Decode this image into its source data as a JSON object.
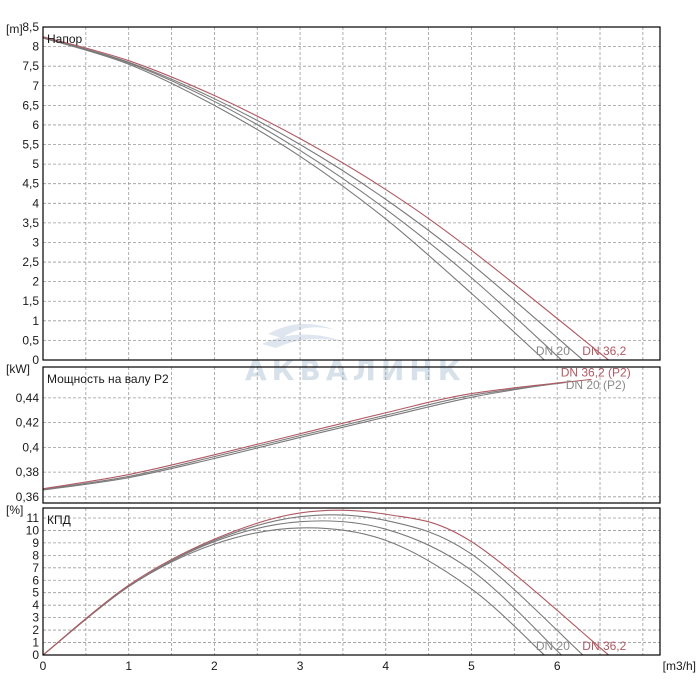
{
  "watermark": {
    "text": "АКВАЛИНК"
  },
  "colors": {
    "grid": "#9a9a9a",
    "frame": "#000000",
    "curve_gray": "#7a7a7a",
    "curve_red": "#b05a64",
    "label_gray": "#8a8a8a",
    "watermark": "#b8c9da"
  },
  "chart_data": [
    {
      "type": "line",
      "title": "Напор",
      "ylabel": "[m]",
      "xlim": [
        0,
        7.2
      ],
      "ylim": [
        0,
        8.5
      ],
      "yticks": [
        0,
        0.5,
        1,
        1.5,
        2,
        2.5,
        3,
        3.5,
        4,
        4.5,
        5,
        5.5,
        6,
        6.5,
        7,
        7.5,
        8,
        8.5
      ],
      "ytick_labels": [
        "0",
        "0,5",
        "1",
        "1,5",
        "2",
        "2,5",
        "3",
        "3,5",
        "4",
        "4,5",
        "5",
        "5,5",
        "6",
        "6,5",
        "7",
        "7,5",
        "8",
        "8,5"
      ],
      "grid": true,
      "series": [
        {
          "color": "gray",
          "x": [
            0,
            1,
            2,
            3,
            4,
            5,
            5.85
          ],
          "y": [
            8.22,
            7.55,
            6.5,
            5.2,
            3.6,
            1.7,
            0
          ]
        },
        {
          "color": "gray",
          "x": [
            0,
            1,
            2,
            3,
            4,
            5,
            6.05
          ],
          "y": [
            8.23,
            7.58,
            6.6,
            5.35,
            3.85,
            2.1,
            0
          ]
        },
        {
          "color": "gray",
          "x": [
            0,
            1,
            2,
            3,
            4,
            5,
            6.3
          ],
          "y": [
            8.24,
            7.6,
            6.67,
            5.5,
            4.1,
            2.45,
            0
          ]
        },
        {
          "color": "red",
          "x": [
            0,
            1,
            2,
            3,
            4,
            5,
            6.6
          ],
          "y": [
            8.25,
            7.64,
            6.75,
            5.65,
            4.35,
            2.8,
            0
          ]
        }
      ],
      "labels": [
        {
          "text": "DN 20",
          "x": 5.95,
          "y": 0.08,
          "color": "gray"
        },
        {
          "text": "DN 36,2",
          "x": 6.55,
          "y": 0.08,
          "color": "red"
        }
      ]
    },
    {
      "type": "line",
      "title": "Мощность на валу P2",
      "ylabel": "[kW]",
      "xlim": [
        0,
        7.2
      ],
      "ylim": [
        0.355,
        0.465
      ],
      "yticks": [
        0.36,
        0.38,
        0.4,
        0.42,
        0.44
      ],
      "ytick_labels": [
        "0,36",
        "0,38",
        "0,4",
        "0,42",
        "0,44"
      ],
      "grid": true,
      "series": [
        {
          "color": "gray",
          "x": [
            0,
            1,
            2,
            3,
            4,
            5,
            5.9
          ],
          "y": [
            0.3655,
            0.3755,
            0.391,
            0.408,
            0.4245,
            0.4405,
            0.451
          ]
        },
        {
          "color": "gray",
          "x": [
            0,
            1,
            2,
            3,
            4,
            5,
            6.1
          ],
          "y": [
            0.366,
            0.3765,
            0.3925,
            0.4095,
            0.426,
            0.442,
            0.4525
          ]
        },
        {
          "color": "red",
          "x": [
            0,
            1,
            2,
            3,
            4,
            5,
            6.4
          ],
          "y": [
            0.3665,
            0.378,
            0.394,
            0.411,
            0.428,
            0.4435,
            0.455
          ]
        }
      ],
      "labels": [
        {
          "text": "DN 36,2 (P2)",
          "x": 6.45,
          "y": 0.4555,
          "color": "red"
        },
        {
          "text": "DN 20 (P2)",
          "x": 6.45,
          "y": 0.4455,
          "color": "gray"
        }
      ]
    },
    {
      "type": "line",
      "title": "КПД",
      "ylabel": "[%]",
      "xlabel": "[m3/h]",
      "xlim": [
        0,
        7.2
      ],
      "ylim": [
        0,
        11.8
      ],
      "xticks": [
        0,
        1,
        2,
        3,
        4,
        5,
        6
      ],
      "yticks": [
        0,
        1,
        2,
        3,
        4,
        5,
        6,
        7,
        8,
        9,
        10,
        11
      ],
      "ytick_labels": [
        "0",
        "1",
        "2",
        "3",
        "4",
        "5",
        "6",
        "7",
        "8",
        "9",
        "10",
        "11"
      ],
      "grid": true,
      "series": [
        {
          "color": "gray",
          "x": [
            0,
            1,
            2,
            3,
            4,
            5,
            5.85
          ],
          "y": [
            0,
            5.5,
            8.9,
            10.2,
            9.2,
            5.3,
            0
          ]
        },
        {
          "color": "gray",
          "x": [
            0,
            1,
            2,
            3,
            4,
            5,
            6.05
          ],
          "y": [
            0,
            5.5,
            9.1,
            10.7,
            10.1,
            6.8,
            0
          ]
        },
        {
          "color": "gray",
          "x": [
            0,
            1,
            2,
            3,
            4,
            5,
            6.3
          ],
          "y": [
            0,
            5.5,
            9.2,
            11.1,
            10.8,
            8.1,
            0
          ]
        },
        {
          "color": "red",
          "x": [
            0,
            1,
            2,
            3,
            4,
            5,
            6.6
          ],
          "y": [
            0,
            5.6,
            9.3,
            11.4,
            11.3,
            9.1,
            0
          ]
        }
      ],
      "labels": [
        {
          "text": "DN 20",
          "x": 5.95,
          "y": 0.25,
          "color": "gray"
        },
        {
          "text": "DN 36,2",
          "x": 6.55,
          "y": 0.25,
          "color": "red"
        }
      ]
    }
  ]
}
